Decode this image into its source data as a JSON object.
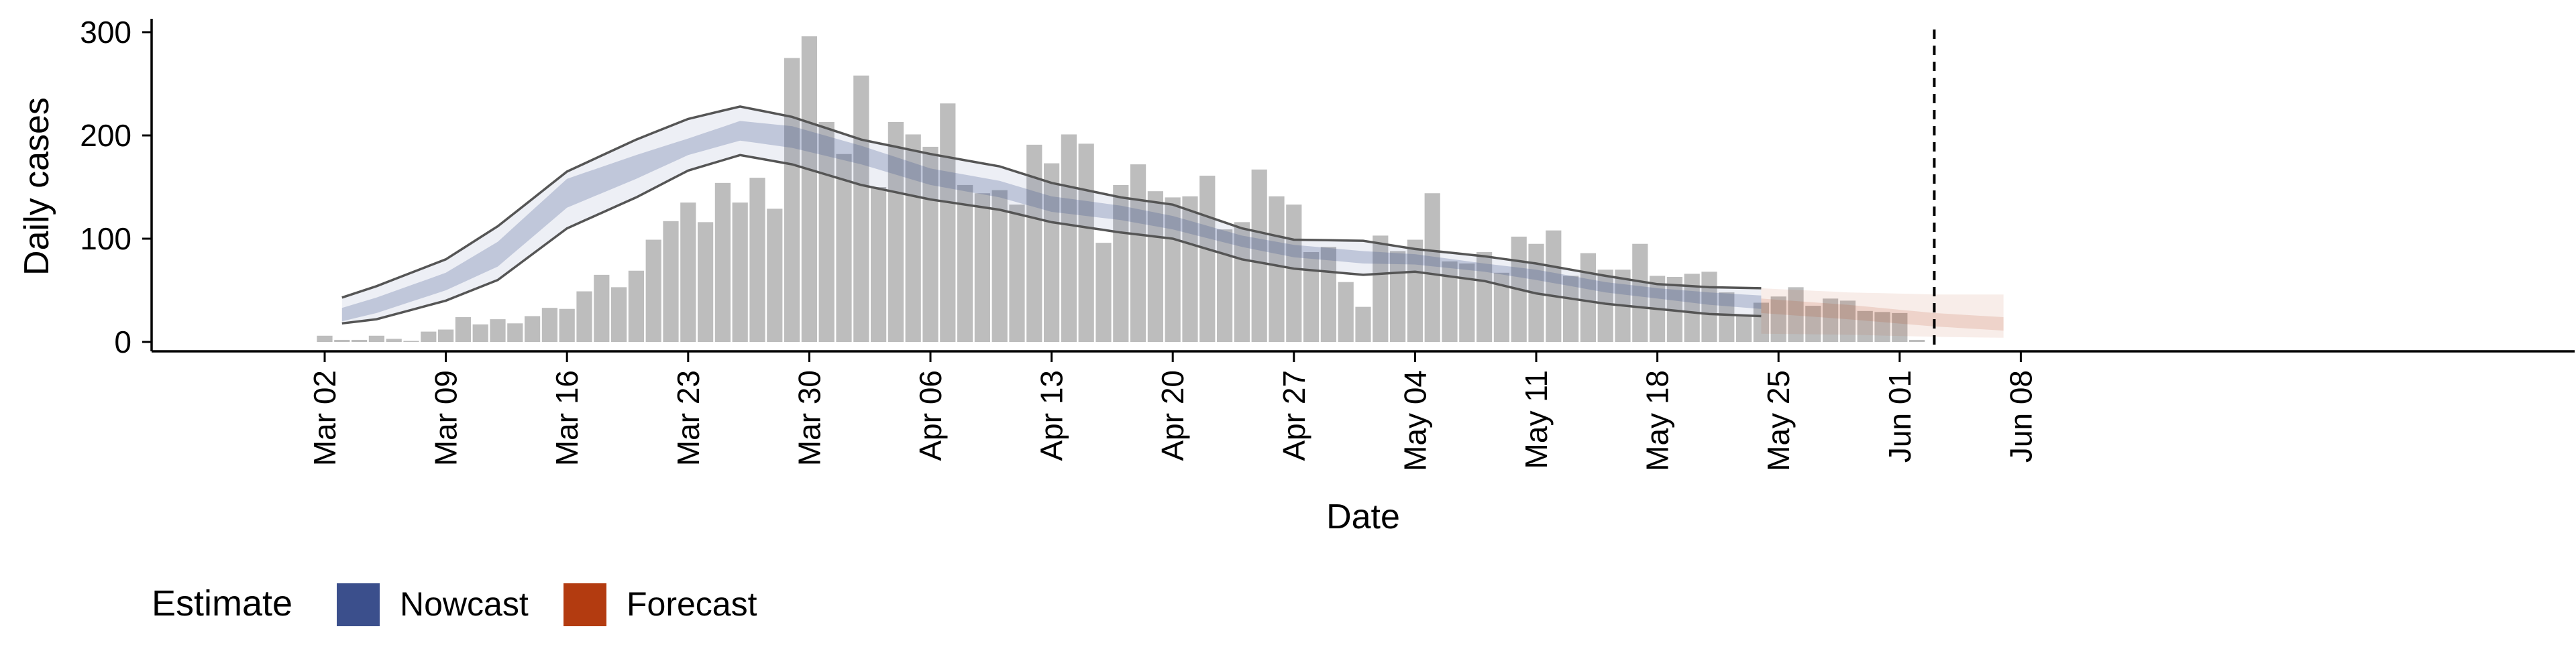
{
  "chart_data": {
    "type": "bar",
    "xlabel": "Date",
    "ylabel": "Daily cases",
    "ylim": [
      0,
      310
    ],
    "yticks": [
      0,
      100,
      200,
      300
    ],
    "year": 2020,
    "xrange": [
      "2020-03-02",
      "2020-06-10"
    ],
    "xticks": [
      {
        "date": "2020-03-02",
        "label": "Mar 02"
      },
      {
        "date": "2020-03-09",
        "label": "Mar 09"
      },
      {
        "date": "2020-03-16",
        "label": "Mar 16"
      },
      {
        "date": "2020-03-23",
        "label": "Mar 23"
      },
      {
        "date": "2020-03-30",
        "label": "Mar 30"
      },
      {
        "date": "2020-04-06",
        "label": "Apr 06"
      },
      {
        "date": "2020-04-13",
        "label": "Apr 13"
      },
      {
        "date": "2020-04-20",
        "label": "Apr 20"
      },
      {
        "date": "2020-04-27",
        "label": "Apr 27"
      },
      {
        "date": "2020-05-04",
        "label": "May 04"
      },
      {
        "date": "2020-05-11",
        "label": "May 11"
      },
      {
        "date": "2020-05-18",
        "label": "May 18"
      },
      {
        "date": "2020-05-25",
        "label": "May 25"
      },
      {
        "date": "2020-06-01",
        "label": "Jun 01"
      },
      {
        "date": "2020-06-08",
        "label": "Jun 08"
      }
    ],
    "bars": {
      "start": "2020-03-02",
      "color": "#bdbdbd",
      "values": [
        6,
        2,
        2,
        6,
        3,
        1,
        10,
        12,
        24,
        17,
        22,
        18,
        25,
        33,
        32,
        49,
        65,
        53,
        69,
        99,
        117,
        135,
        116,
        154,
        135,
        159,
        129,
        275,
        296,
        213,
        182,
        258,
        150,
        213,
        201,
        189,
        231,
        152,
        144,
        147,
        133,
        191,
        173,
        201,
        192,
        96,
        152,
        172,
        146,
        140,
        141,
        161,
        109,
        116,
        167,
        141,
        133,
        87,
        92,
        58,
        34,
        103,
        88,
        99,
        144,
        78,
        76,
        87,
        67,
        102,
        95,
        108,
        64,
        86,
        70,
        70,
        95,
        64,
        63,
        66,
        68,
        48,
        25,
        38,
        44,
        53,
        35,
        42,
        40,
        30,
        29,
        28,
        2
      ]
    },
    "nowcast": {
      "name": "Nowcast",
      "color": "#3b4f8c",
      "start": "2020-03-03",
      "end": "2020-05-24",
      "key": [
        [
          "2020-03-03",
          18,
          20,
          24,
          33,
          43
        ],
        [
          "2020-03-05",
          22,
          28,
          34,
          43,
          54
        ],
        [
          "2020-03-09",
          40,
          50,
          58,
          67,
          80
        ],
        [
          "2020-03-12",
          60,
          73,
          86,
          97,
          112
        ],
        [
          "2020-03-16",
          110,
          130,
          145,
          158,
          165
        ],
        [
          "2020-03-20",
          140,
          158,
          170,
          181,
          196
        ],
        [
          "2020-03-23",
          166,
          181,
          190,
          197,
          216
        ],
        [
          "2020-03-26",
          181,
          195,
          205,
          214,
          228
        ],
        [
          "2020-03-29",
          172,
          188,
          199,
          209,
          218
        ],
        [
          "2020-04-02",
          152,
          172,
          182,
          190,
          196
        ],
        [
          "2020-04-06",
          138,
          152,
          160,
          168,
          182
        ],
        [
          "2020-04-10",
          128,
          140,
          148,
          156,
          170
        ],
        [
          "2020-04-13",
          116,
          126,
          134,
          141,
          154
        ],
        [
          "2020-04-17",
          106,
          118,
          125,
          132,
          140
        ],
        [
          "2020-04-20",
          100,
          109,
          116,
          122,
          133
        ],
        [
          "2020-04-24",
          80,
          92,
          97,
          103,
          110
        ],
        [
          "2020-04-27",
          71,
          82,
          88,
          94,
          99
        ],
        [
          "2020-05-01",
          65,
          76,
          82,
          88,
          98
        ],
        [
          "2020-05-04",
          68,
          75,
          80,
          85,
          90
        ],
        [
          "2020-05-08",
          59,
          68,
          72,
          76,
          83
        ],
        [
          "2020-05-11",
          47,
          60,
          65,
          70,
          76
        ],
        [
          "2020-05-15",
          37,
          48,
          53,
          58,
          64
        ],
        [
          "2020-05-18",
          32,
          42,
          47,
          52,
          56
        ],
        [
          "2020-05-21",
          27,
          36,
          42,
          48,
          53
        ],
        [
          "2020-05-24",
          25,
          32,
          38,
          45,
          52
        ]
      ]
    },
    "forecast": {
      "name": "Forecast",
      "color": "#b33b10",
      "key": [
        [
          "2020-05-24",
          8,
          28,
          36,
          42,
          52
        ],
        [
          "2020-05-29",
          7,
          22,
          30,
          36,
          48
        ],
        [
          "2020-06-03",
          5,
          15,
          22,
          28,
          46
        ],
        [
          "2020-06-07",
          4,
          11,
          18,
          24,
          46
        ]
      ]
    },
    "vline": "2020-06-03",
    "legend": {
      "title": "Estimate",
      "position": "bottom-left"
    },
    "grid": false
  }
}
